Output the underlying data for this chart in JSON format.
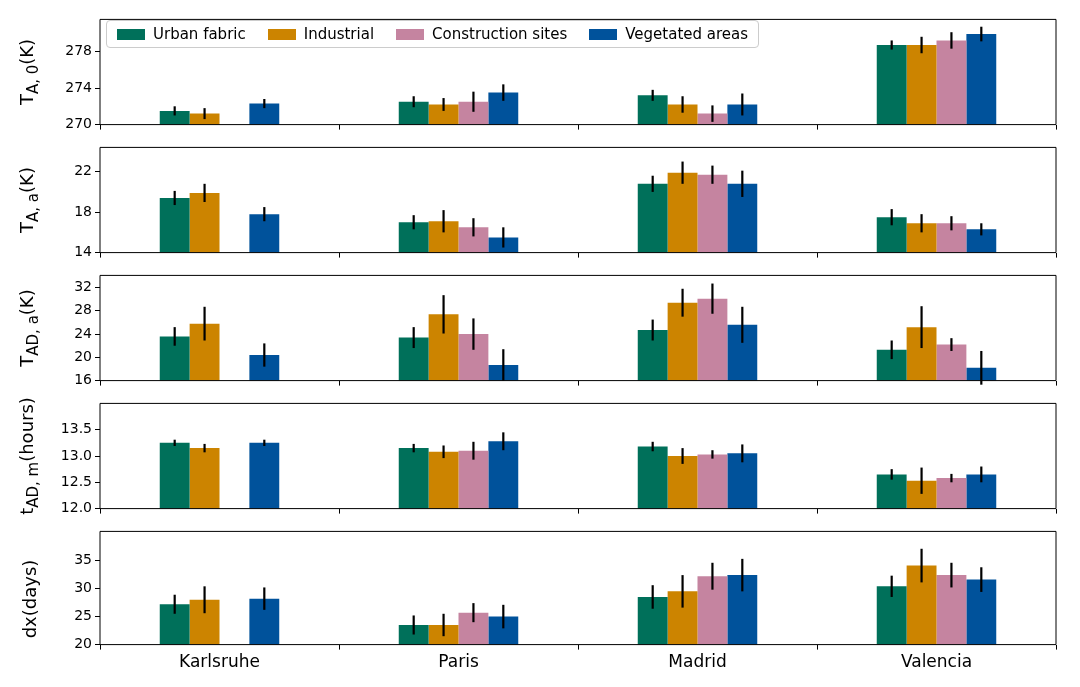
{
  "chart_data": [
    {
      "type": "bar",
      "categories": [
        "Karlsruhe",
        "Paris",
        "Madrid",
        "Valencia"
      ],
      "ylabel": "T$_{A, 0}$(K)",
      "ylim": [
        270,
        281.5
      ],
      "yticks": [
        270,
        274,
        278
      ],
      "legend": "top left",
      "tick_labels": "y",
      "series": [
        {
          "name": "Urban fabric",
          "color": "#00705a",
          "values": [
            271.5,
            272.5,
            273.2,
            278.7
          ],
          "errors": [
            0.5,
            0.6,
            0.6,
            0.5
          ]
        },
        {
          "name": "Industrial",
          "color": "#cc8400",
          "values": [
            271.2,
            272.2,
            272.2,
            278.7
          ],
          "errors": [
            0.6,
            0.7,
            0.9,
            0.9
          ]
        },
        {
          "name": "Construction sites",
          "color": "#c584a0",
          "values": [
            null,
            272.5,
            271.2,
            279.2
          ],
          "errors": [
            null,
            1.1,
            0.9,
            0.9
          ]
        },
        {
          "name": "Vegetated areas",
          "color": "#00529b",
          "values": [
            272.3,
            273.5,
            272.2,
            279.9
          ],
          "errors": [
            0.5,
            0.9,
            1.2,
            0.8
          ]
        }
      ]
    },
    {
      "type": "bar",
      "categories": [
        "Karlsruhe",
        "Paris",
        "Madrid",
        "Valencia"
      ],
      "ylabel": "T$_{A, a}$(K)",
      "ylim": [
        14,
        24.4
      ],
      "yticks": [
        14,
        18,
        22
      ],
      "tick_labels": "y",
      "series": [
        {
          "color": "#00705a",
          "values": [
            19.4,
            17.0,
            20.8,
            17.5
          ],
          "errors": [
            0.7,
            0.7,
            0.8,
            0.8
          ]
        },
        {
          "color": "#cc8400",
          "values": [
            19.9,
            17.1,
            21.9,
            16.9
          ],
          "errors": [
            0.9,
            1.1,
            1.1,
            0.9
          ]
        },
        {
          "color": "#c584a0",
          "values": [
            null,
            16.5,
            21.7,
            16.9
          ],
          "errors": [
            null,
            0.9,
            0.9,
            0.7
          ]
        },
        {
          "color": "#00529b",
          "values": [
            17.8,
            15.5,
            20.8,
            16.3
          ],
          "errors": [
            0.7,
            1.0,
            1.3,
            0.6
          ]
        }
      ]
    },
    {
      "type": "bar",
      "categories": [
        "Karlsruhe",
        "Paris",
        "Madrid",
        "Valencia"
      ],
      "ylabel": "T$_{AD, a}$(K)",
      "ylim": [
        16,
        34.1
      ],
      "yticks": [
        16,
        20,
        24,
        28,
        32
      ],
      "tick_labels": "y",
      "series": [
        {
          "color": "#00705a",
          "values": [
            23.6,
            23.4,
            24.7,
            21.3
          ],
          "errors": [
            1.6,
            1.8,
            1.8,
            1.6
          ]
        },
        {
          "color": "#cc8400",
          "values": [
            25.8,
            27.4,
            29.4,
            25.2
          ],
          "errors": [
            2.9,
            3.3,
            2.4,
            3.6
          ]
        },
        {
          "color": "#c584a0",
          "values": [
            null,
            24.0,
            30.1,
            22.2
          ],
          "errors": [
            null,
            2.7,
            2.6,
            1.1
          ]
        },
        {
          "color": "#00529b",
          "values": [
            20.4,
            18.7,
            25.6,
            18.2
          ],
          "errors": [
            2.0,
            2.7,
            3.1,
            2.9
          ]
        }
      ]
    },
    {
      "type": "bar",
      "categories": [
        "Karlsruhe",
        "Paris",
        "Madrid",
        "Valencia"
      ],
      "ylabel": "t$_{AD, m}$(hours)",
      "ylim": [
        12,
        14
      ],
      "yticks": [
        {
          "value": 12,
          "label": "12.0"
        },
        12.5,
        {
          "value": 13,
          "label": "13.0"
        },
        13.5
      ],
      "tick_labels": "y",
      "series": [
        {
          "color": "#00705a",
          "values": [
            13.25,
            13.15,
            13.18,
            12.65
          ],
          "errors": [
            0.06,
            0.08,
            0.09,
            0.1
          ]
        },
        {
          "color": "#cc8400",
          "values": [
            13.15,
            13.08,
            13.0,
            12.53
          ],
          "errors": [
            0.08,
            0.12,
            0.15,
            0.25
          ]
        },
        {
          "color": "#c584a0",
          "values": [
            null,
            13.1,
            13.03,
            12.58
          ],
          "errors": [
            null,
            0.17,
            0.08,
            0.08
          ]
        },
        {
          "color": "#00529b",
          "values": [
            13.25,
            13.28,
            13.05,
            12.65
          ],
          "errors": [
            0.06,
            0.17,
            0.17,
            0.15
          ]
        }
      ]
    },
    {
      "type": "bar",
      "categories": [
        "Karlsruhe",
        "Paris",
        "Madrid",
        "Valencia"
      ],
      "ylabel": "dx(days)",
      "ylim": [
        20,
        40.2
      ],
      "yticks": [
        20,
        25,
        30,
        35
      ],
      "series": [
        {
          "color": "#00705a",
          "values": [
            27.2,
            23.5,
            28.5,
            30.4
          ],
          "errors": [
            1.7,
            1.7,
            2.1,
            1.9
          ]
        },
        {
          "color": "#cc8400",
          "values": [
            28.0,
            23.5,
            29.5,
            34.1
          ],
          "errors": [
            2.4,
            2.0,
            2.9,
            3.0
          ]
        },
        {
          "color": "#c584a0",
          "values": [
            null,
            25.7,
            32.2,
            32.4
          ],
          "errors": [
            null,
            1.7,
            2.4,
            2.2
          ]
        },
        {
          "color": "#00529b",
          "values": [
            28.2,
            25.0,
            32.4,
            31.6
          ],
          "errors": [
            2.0,
            2.1,
            2.9,
            2.2
          ]
        }
      ]
    }
  ]
}
